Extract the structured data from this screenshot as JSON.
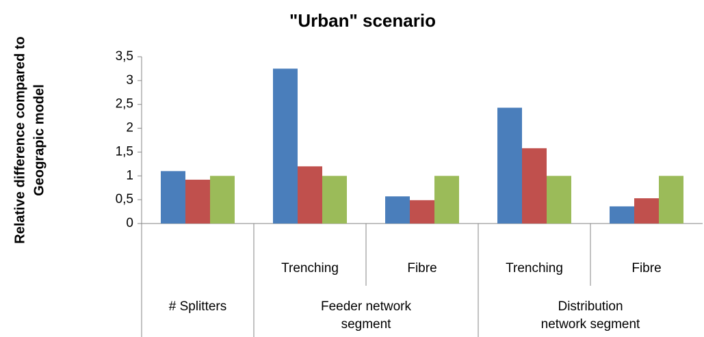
{
  "chart_data": {
    "type": "bar",
    "title": "\"Urban\" scenario",
    "ylabel": [
      "Relative difference compared to",
      "Geograpic model"
    ],
    "categories": [
      null,
      "Trenching",
      "Fibre",
      "Trenching",
      "Fibre"
    ],
    "groups": [
      {
        "name": "# Splitters",
        "size": 1
      },
      {
        "name": "Feeder network segment",
        "size": 2
      },
      {
        "name": "Distribution network segment",
        "size": 2
      }
    ],
    "series": [
      {
        "color": "#4a7ebb",
        "values": [
          1.1,
          3.25,
          0.57,
          2.43,
          0.36
        ]
      },
      {
        "color": "#c0504d",
        "values": [
          0.92,
          1.2,
          0.49,
          1.58,
          0.53
        ]
      },
      {
        "color": "#9bbb59",
        "values": [
          1,
          1,
          1,
          1,
          1
        ]
      }
    ],
    "ylim": [
      0,
      3.5
    ],
    "yticks": [
      0,
      {
        "value": 0.5,
        "label": "0,5"
      },
      1,
      {
        "value": 1.5,
        "label": "1,5"
      },
      2,
      {
        "value": 2.5,
        "label": "2,5"
      },
      3,
      {
        "value": 3.5,
        "label": "3,5"
      }
    ],
    "grid": false
  }
}
